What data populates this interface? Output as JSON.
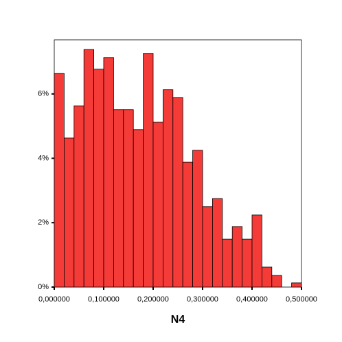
{
  "chart_data": {
    "type": "histogram",
    "x_label": "N4",
    "bins": [
      0,
      0.02,
      0.04,
      0.06,
      0.08,
      0.1,
      0.12,
      0.14,
      0.16,
      0.18,
      0.2,
      0.22,
      0.24,
      0.26,
      0.28,
      0.3,
      0.32,
      0.34,
      0.36,
      0.38,
      0.4,
      0.42,
      0.44,
      0.46,
      0.48,
      0.5
    ],
    "values": [
      6.64,
      4.63,
      5.63,
      7.38,
      6.77,
      7.13,
      5.51,
      5.51,
      4.89,
      7.26,
      5.12,
      6.13,
      5.89,
      3.88,
      4.25,
      2.5,
      2.75,
      1.49,
      1.88,
      1.49,
      2.24,
      0.62,
      0.36,
      0,
      0.13
    ],
    "color": "#f43b37",
    "xlim": [
      0,
      0.5
    ],
    "xticks": [
      {
        "value": 0,
        "label": "0,000000"
      },
      {
        "value": 0.1,
        "label": "0,100000"
      },
      {
        "value": 0.2,
        "label": "0,200000"
      },
      {
        "value": 0.3,
        "label": "0,300000"
      },
      {
        "value": 0.4,
        "label": "0,400000"
      },
      {
        "value": 0.5,
        "label": "0,500000"
      }
    ],
    "ylim": [
      0,
      7.68
    ],
    "yticks": [
      {
        "value": 0,
        "label": "0%"
      },
      {
        "value": 2,
        "label": "2%"
      },
      {
        "value": 4,
        "label": "4%"
      },
      {
        "value": 6,
        "label": "6%"
      }
    ]
  }
}
